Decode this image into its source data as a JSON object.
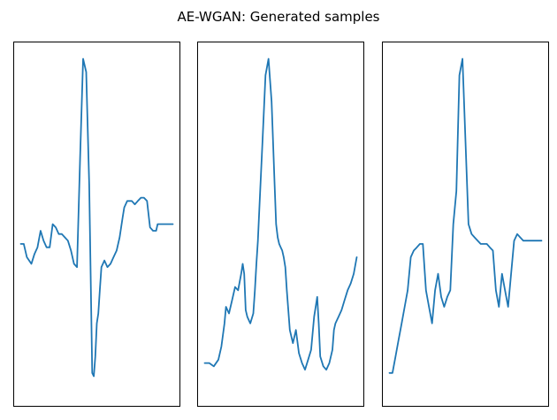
{
  "chart_data": [
    {
      "type": "line",
      "title": "",
      "xlabel": "",
      "ylabel": "",
      "ticks_visible": false,
      "series": [
        {
          "color": "#1f77b4",
          "x": [
            0,
            0.02,
            0.04,
            0.07,
            0.09,
            0.11,
            0.13,
            0.15,
            0.17,
            0.19,
            0.21,
            0.23,
            0.25,
            0.27,
            0.29,
            0.31,
            0.33,
            0.35,
            0.37,
            0.39,
            0.41,
            0.43,
            0.45,
            0.47,
            0.48,
            0.49,
            0.5,
            0.51,
            0.52,
            0.53,
            0.55,
            0.57,
            0.59,
            0.61,
            0.63,
            0.64,
            0.65,
            0.66,
            0.67,
            0.68,
            0.7,
            0.73,
            0.75,
            0.77,
            0.79,
            0.81,
            0.83,
            0.84,
            0.85,
            0.87,
            0.89,
            0.9,
            0.92,
            0.94,
            0.96,
            0.98,
            1.0
          ],
          "y": [
            0.44,
            0.44,
            0.4,
            0.38,
            0.41,
            0.43,
            0.48,
            0.45,
            0.43,
            0.43,
            0.5,
            0.49,
            0.47,
            0.47,
            0.46,
            0.45,
            0.42,
            0.38,
            0.37,
            0.7,
            1.0,
            0.96,
            0.62,
            0.05,
            0.04,
            0.1,
            0.2,
            0.23,
            0.3,
            0.37,
            0.39,
            0.37,
            0.38,
            0.4,
            0.42,
            0.44,
            0.46,
            0.49,
            0.52,
            0.55,
            0.57,
            0.57,
            0.56,
            0.57,
            0.58,
            0.58,
            0.57,
            0.53,
            0.49,
            0.48,
            0.48,
            0.5,
            0.5,
            0.5,
            0.5,
            0.5,
            0.5
          ]
        }
      ]
    },
    {
      "type": "line",
      "title": "",
      "xlabel": "",
      "ylabel": "",
      "ticks_visible": false,
      "series": [
        {
          "color": "#1f77b4",
          "x": [
            0,
            0.03,
            0.06,
            0.09,
            0.11,
            0.13,
            0.14,
            0.16,
            0.18,
            0.2,
            0.22,
            0.24,
            0.25,
            0.26,
            0.27,
            0.28,
            0.3,
            0.32,
            0.33,
            0.34,
            0.35,
            0.36,
            0.38,
            0.4,
            0.42,
            0.44,
            0.46,
            0.47,
            0.48,
            0.49,
            0.5,
            0.51,
            0.52,
            0.53,
            0.54,
            0.56,
            0.58,
            0.6,
            0.62,
            0.64,
            0.66,
            0.68,
            0.7,
            0.72,
            0.74,
            0.75,
            0.76,
            0.78,
            0.8,
            0.82,
            0.84,
            0.85,
            0.86,
            0.88,
            0.9,
            0.92,
            0.94,
            0.96,
            0.98,
            1.0
          ],
          "y": [
            0.08,
            0.08,
            0.07,
            0.09,
            0.13,
            0.2,
            0.25,
            0.23,
            0.27,
            0.31,
            0.3,
            0.35,
            0.38,
            0.35,
            0.24,
            0.22,
            0.2,
            0.23,
            0.3,
            0.38,
            0.45,
            0.55,
            0.75,
            0.95,
            1.0,
            0.87,
            0.62,
            0.5,
            0.46,
            0.44,
            0.43,
            0.42,
            0.4,
            0.37,
            0.3,
            0.18,
            0.14,
            0.18,
            0.11,
            0.08,
            0.06,
            0.09,
            0.12,
            0.22,
            0.28,
            0.2,
            0.1,
            0.07,
            0.06,
            0.08,
            0.12,
            0.18,
            0.2,
            0.22,
            0.24,
            0.27,
            0.3,
            0.32,
            0.35,
            0.4
          ]
        }
      ]
    },
    {
      "type": "line",
      "title": "",
      "xlabel": "",
      "ylabel": "",
      "ticks_visible": false,
      "series": [
        {
          "color": "#1f77b4",
          "x": [
            0,
            0.02,
            0.04,
            0.06,
            0.08,
            0.1,
            0.12,
            0.14,
            0.16,
            0.18,
            0.2,
            0.22,
            0.24,
            0.26,
            0.28,
            0.3,
            0.32,
            0.34,
            0.36,
            0.38,
            0.4,
            0.42,
            0.44,
            0.46,
            0.48,
            0.5,
            0.52,
            0.54,
            0.56,
            0.58,
            0.6,
            0.62,
            0.64,
            0.66,
            0.68,
            0.7,
            0.72,
            0.74,
            0.76,
            0.78,
            0.8,
            0.82,
            0.84,
            0.86,
            0.88,
            0.9,
            0.92,
            0.94,
            0.96,
            0.98,
            1.0
          ],
          "y": [
            0.05,
            0.05,
            0.1,
            0.15,
            0.2,
            0.25,
            0.3,
            0.4,
            0.42,
            0.43,
            0.44,
            0.44,
            0.3,
            0.25,
            0.2,
            0.3,
            0.35,
            0.28,
            0.25,
            0.28,
            0.3,
            0.5,
            0.6,
            0.95,
            1.0,
            0.75,
            0.5,
            0.47,
            0.46,
            0.45,
            0.44,
            0.44,
            0.44,
            0.43,
            0.42,
            0.3,
            0.25,
            0.35,
            0.3,
            0.25,
            0.35,
            0.45,
            0.47,
            0.46,
            0.45,
            0.45,
            0.45,
            0.45,
            0.45,
            0.45,
            0.45
          ]
        }
      ]
    }
  ]
}
